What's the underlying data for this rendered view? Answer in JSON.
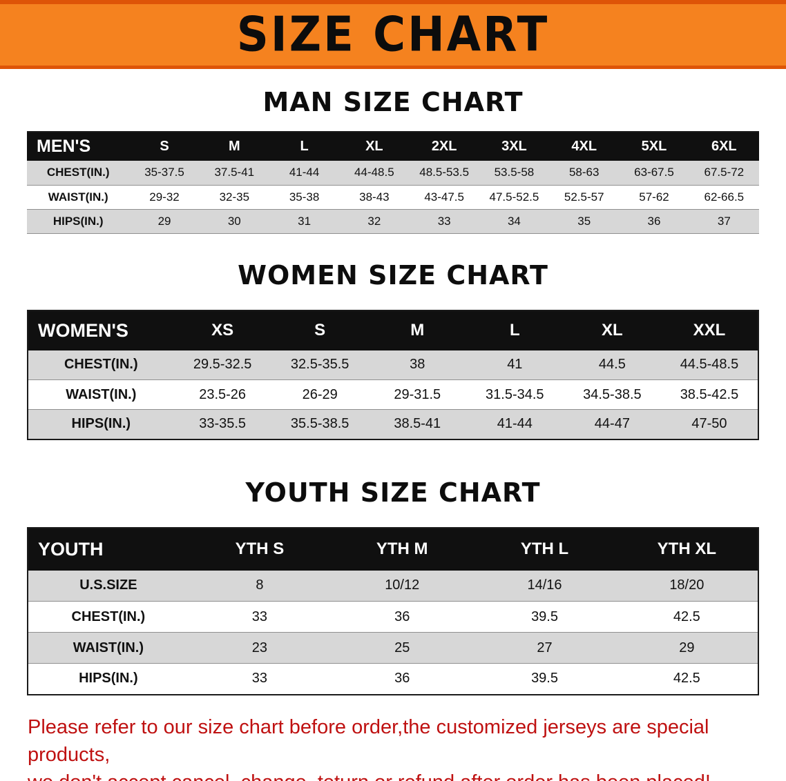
{
  "banner": {
    "title": "SIZE CHART",
    "bg_color": "#f5821f",
    "border_color": "#de5407"
  },
  "colors": {
    "table_header_bg": "#101010",
    "table_row_alt_bg": "#d7d7d7",
    "note_text": "#bf1111"
  },
  "sections": [
    {
      "heading": "MAN SIZE CHART",
      "table": {
        "header": [
          "MEN'S",
          "S",
          "M",
          "L",
          "XL",
          "2XL",
          "3XL",
          "4XL",
          "5XL",
          "6XL"
        ],
        "rows": [
          [
            "CHEST(IN.)",
            "35-37.5",
            "37.5-41",
            "41-44",
            "44-48.5",
            "48.5-53.5",
            "53.5-58",
            "58-63",
            "63-67.5",
            "67.5-72"
          ],
          [
            "WAIST(IN.)",
            "29-32",
            "32-35",
            "35-38",
            "38-43",
            "43-47.5",
            "47.5-52.5",
            "52.5-57",
            "57-62",
            "62-66.5"
          ],
          [
            "HIPS(IN.)",
            "29",
            "30",
            "31",
            "32",
            "33",
            "34",
            "35",
            "36",
            "37"
          ]
        ]
      }
    },
    {
      "heading": "WOMEN SIZE CHART",
      "table": {
        "header": [
          "WOMEN'S",
          "XS",
          "S",
          "M",
          "L",
          "XL",
          "XXL"
        ],
        "rows": [
          [
            "CHEST(IN.)",
            "29.5-32.5",
            "32.5-35.5",
            "38",
            "41",
            "44.5",
            "44.5-48.5"
          ],
          [
            "WAIST(IN.)",
            "23.5-26",
            "26-29",
            "29-31.5",
            "31.5-34.5",
            "34.5-38.5",
            "38.5-42.5"
          ],
          [
            "HIPS(IN.)",
            "33-35.5",
            "35.5-38.5",
            "38.5-41",
            "41-44",
            "44-47",
            "47-50"
          ]
        ]
      }
    },
    {
      "heading": "YOUTH SIZE CHART",
      "table": {
        "header": [
          "YOUTH",
          "YTH S",
          "YTH M",
          "YTH L",
          "YTH XL"
        ],
        "rows": [
          [
            "U.S.SIZE",
            "8",
            "10/12",
            "14/16",
            "18/20"
          ],
          [
            "CHEST(IN.)",
            "33",
            "36",
            "39.5",
            "42.5"
          ],
          [
            "WAIST(IN.)",
            "23",
            "25",
            "27",
            "29"
          ],
          [
            "HIPS(IN.)",
            "33",
            "36",
            "39.5",
            "42.5"
          ]
        ]
      }
    }
  ],
  "note": {
    "line1": "Please refer to our size chart before order,the customized jerseys are special products,",
    "line2": "we don't accept cancel, change, teturn or refund after order has been placed!"
  }
}
